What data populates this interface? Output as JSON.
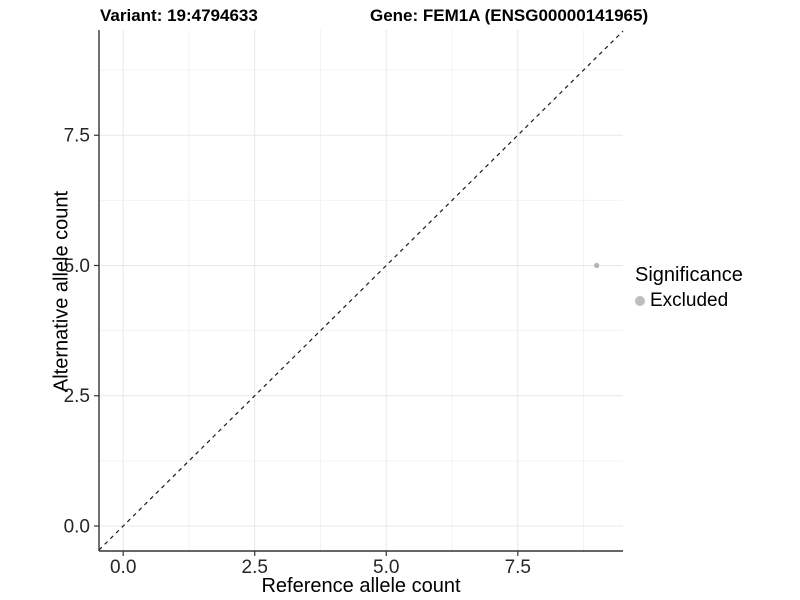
{
  "header": {
    "variant_title": "Variant: 19:4794633",
    "gene_title": "Gene: FEM1A (ENSG00000141965)"
  },
  "chart_data": {
    "type": "scatter",
    "title": "Variant: 19:4794633  /  Gene: FEM1A (ENSG00000141965)",
    "xlabel": "Reference allele count",
    "ylabel": "Alternative allele count",
    "xlim": [
      -0.46,
      9.5
    ],
    "ylim": [
      -0.48,
      9.52
    ],
    "xticks": [
      0.0,
      2.5,
      5.0,
      7.5
    ],
    "yticks": [
      0.0,
      2.5,
      5.0,
      7.5
    ],
    "xtick_labels": [
      "0.0",
      "2.5",
      "5.0",
      "7.5"
    ],
    "ytick_labels": [
      "0.0",
      "2.5",
      "5.0",
      "7.5"
    ],
    "minor_xticks": [
      1.25,
      3.75,
      6.25,
      8.75
    ],
    "minor_yticks": [
      1.25,
      3.75,
      6.25,
      8.75
    ],
    "grid": true,
    "points": [
      {
        "x": 9,
        "y": 5,
        "significance": "Excluded",
        "color": "#b3b3b3",
        "radius": 2.6
      }
    ],
    "identity_line": {
      "style": "dashed",
      "slope": 1,
      "intercept": 0,
      "color": "#1a1a1a"
    },
    "legend": {
      "position": "right",
      "title": "Significance",
      "entries": [
        {
          "label": "Excluded",
          "color": "#bdbdbd",
          "marker": "circle"
        }
      ]
    },
    "style": {
      "major_grid_color": "#e8e8e8",
      "minor_grid_color": "#f3f3f3",
      "axis_line_color": "#333333",
      "point_color": "#b3b3b3"
    }
  }
}
